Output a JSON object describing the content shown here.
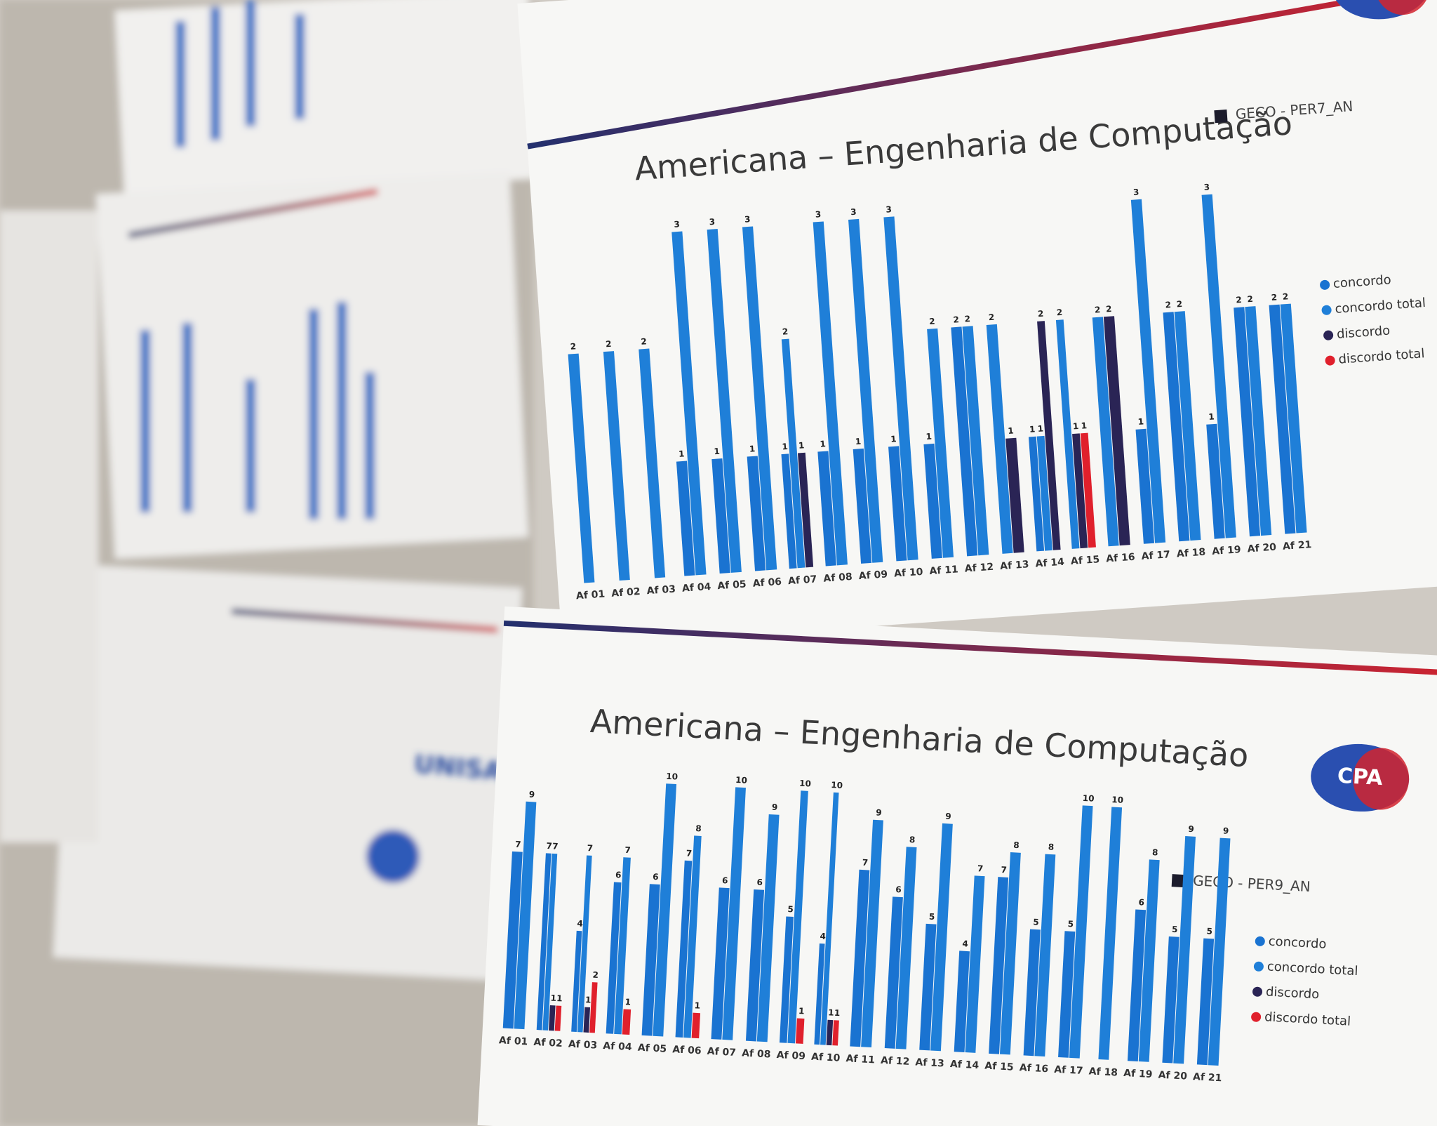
{
  "background": {
    "logo": "UNISAL"
  },
  "chart_data": [
    {
      "type": "bar",
      "title": "Americana – Engenharia de Computação",
      "subtitle": "GECO - PER7_AN",
      "logo": "CPA",
      "categories": [
        "Af 01",
        "Af 02",
        "Af 03",
        "Af 04",
        "Af 05",
        "Af 06",
        "Af 07",
        "Af 08",
        "Af 09",
        "Af 10",
        "Af 11",
        "Af 12",
        "Af 13",
        "Af 14",
        "Af 15",
        "Af 16",
        "Af 17",
        "Af 18",
        "Af 19",
        "Af 20",
        "Af 21"
      ],
      "series": [
        {
          "name": "concordo",
          "color": "#1a73d1",
          "values": [
            null,
            null,
            null,
            1,
            1,
            1,
            1,
            1,
            1,
            1,
            1,
            2,
            null,
            1,
            null,
            null,
            1,
            2,
            1,
            2,
            2
          ]
        },
        {
          "name": "concordo total",
          "color": "#1f7fd8",
          "values": [
            2,
            2,
            2,
            3,
            3,
            3,
            2,
            3,
            3,
            3,
            2,
            2,
            2,
            1,
            2,
            2,
            3,
            2,
            3,
            2,
            2
          ]
        },
        {
          "name": "discordo",
          "color": "#2a2455",
          "values": [
            null,
            null,
            null,
            null,
            null,
            null,
            1,
            null,
            null,
            null,
            null,
            null,
            1,
            2,
            1,
            2,
            null,
            null,
            null,
            null,
            null
          ]
        },
        {
          "name": "discordo total",
          "color": "#e0202c",
          "values": [
            null,
            null,
            null,
            null,
            null,
            null,
            null,
            null,
            null,
            null,
            null,
            null,
            null,
            null,
            1,
            null,
            null,
            null,
            null,
            null,
            null
          ]
        }
      ],
      "ylim": [
        0,
        3
      ]
    },
    {
      "type": "bar",
      "title": "Americana – Engenharia de Computação",
      "subtitle": "GECO - PER9_AN",
      "logo": "CPA",
      "categories": [
        "Af 01",
        "Af 02",
        "Af 03",
        "Af 04",
        "Af 05",
        "Af 06",
        "Af 07",
        "Af 08",
        "Af 09",
        "Af 10",
        "Af 11",
        "Af 12",
        "Af 13",
        "Af 14",
        "Af 15",
        "Af 16",
        "Af 17",
        "Af 18",
        "Af 19",
        "Af 20",
        "Af 21"
      ],
      "series": [
        {
          "name": "concordo",
          "color": "#1a73d1",
          "values": [
            7,
            7,
            4,
            6,
            6,
            7,
            6,
            6,
            5,
            4,
            7,
            6,
            5,
            4,
            7,
            5,
            5,
            null,
            6,
            5,
            5
          ]
        },
        {
          "name": "concordo total",
          "color": "#1f7fd8",
          "values": [
            9,
            7,
            7,
            7,
            10,
            8,
            10,
            9,
            10,
            10,
            9,
            8,
            9,
            7,
            8,
            8,
            10,
            10,
            8,
            9,
            9
          ]
        },
        {
          "name": "discordo",
          "color": "#2a2455",
          "values": [
            null,
            1,
            1,
            null,
            null,
            null,
            null,
            null,
            null,
            1,
            null,
            null,
            null,
            null,
            null,
            null,
            null,
            null,
            null,
            null,
            null
          ]
        },
        {
          "name": "discordo total",
          "color": "#e0202c",
          "values": [
            null,
            1,
            2,
            1,
            null,
            1,
            null,
            null,
            1,
            1,
            null,
            null,
            null,
            null,
            null,
            null,
            null,
            null,
            null,
            null,
            null
          ]
        }
      ],
      "ylim": [
        0,
        10
      ]
    }
  ]
}
